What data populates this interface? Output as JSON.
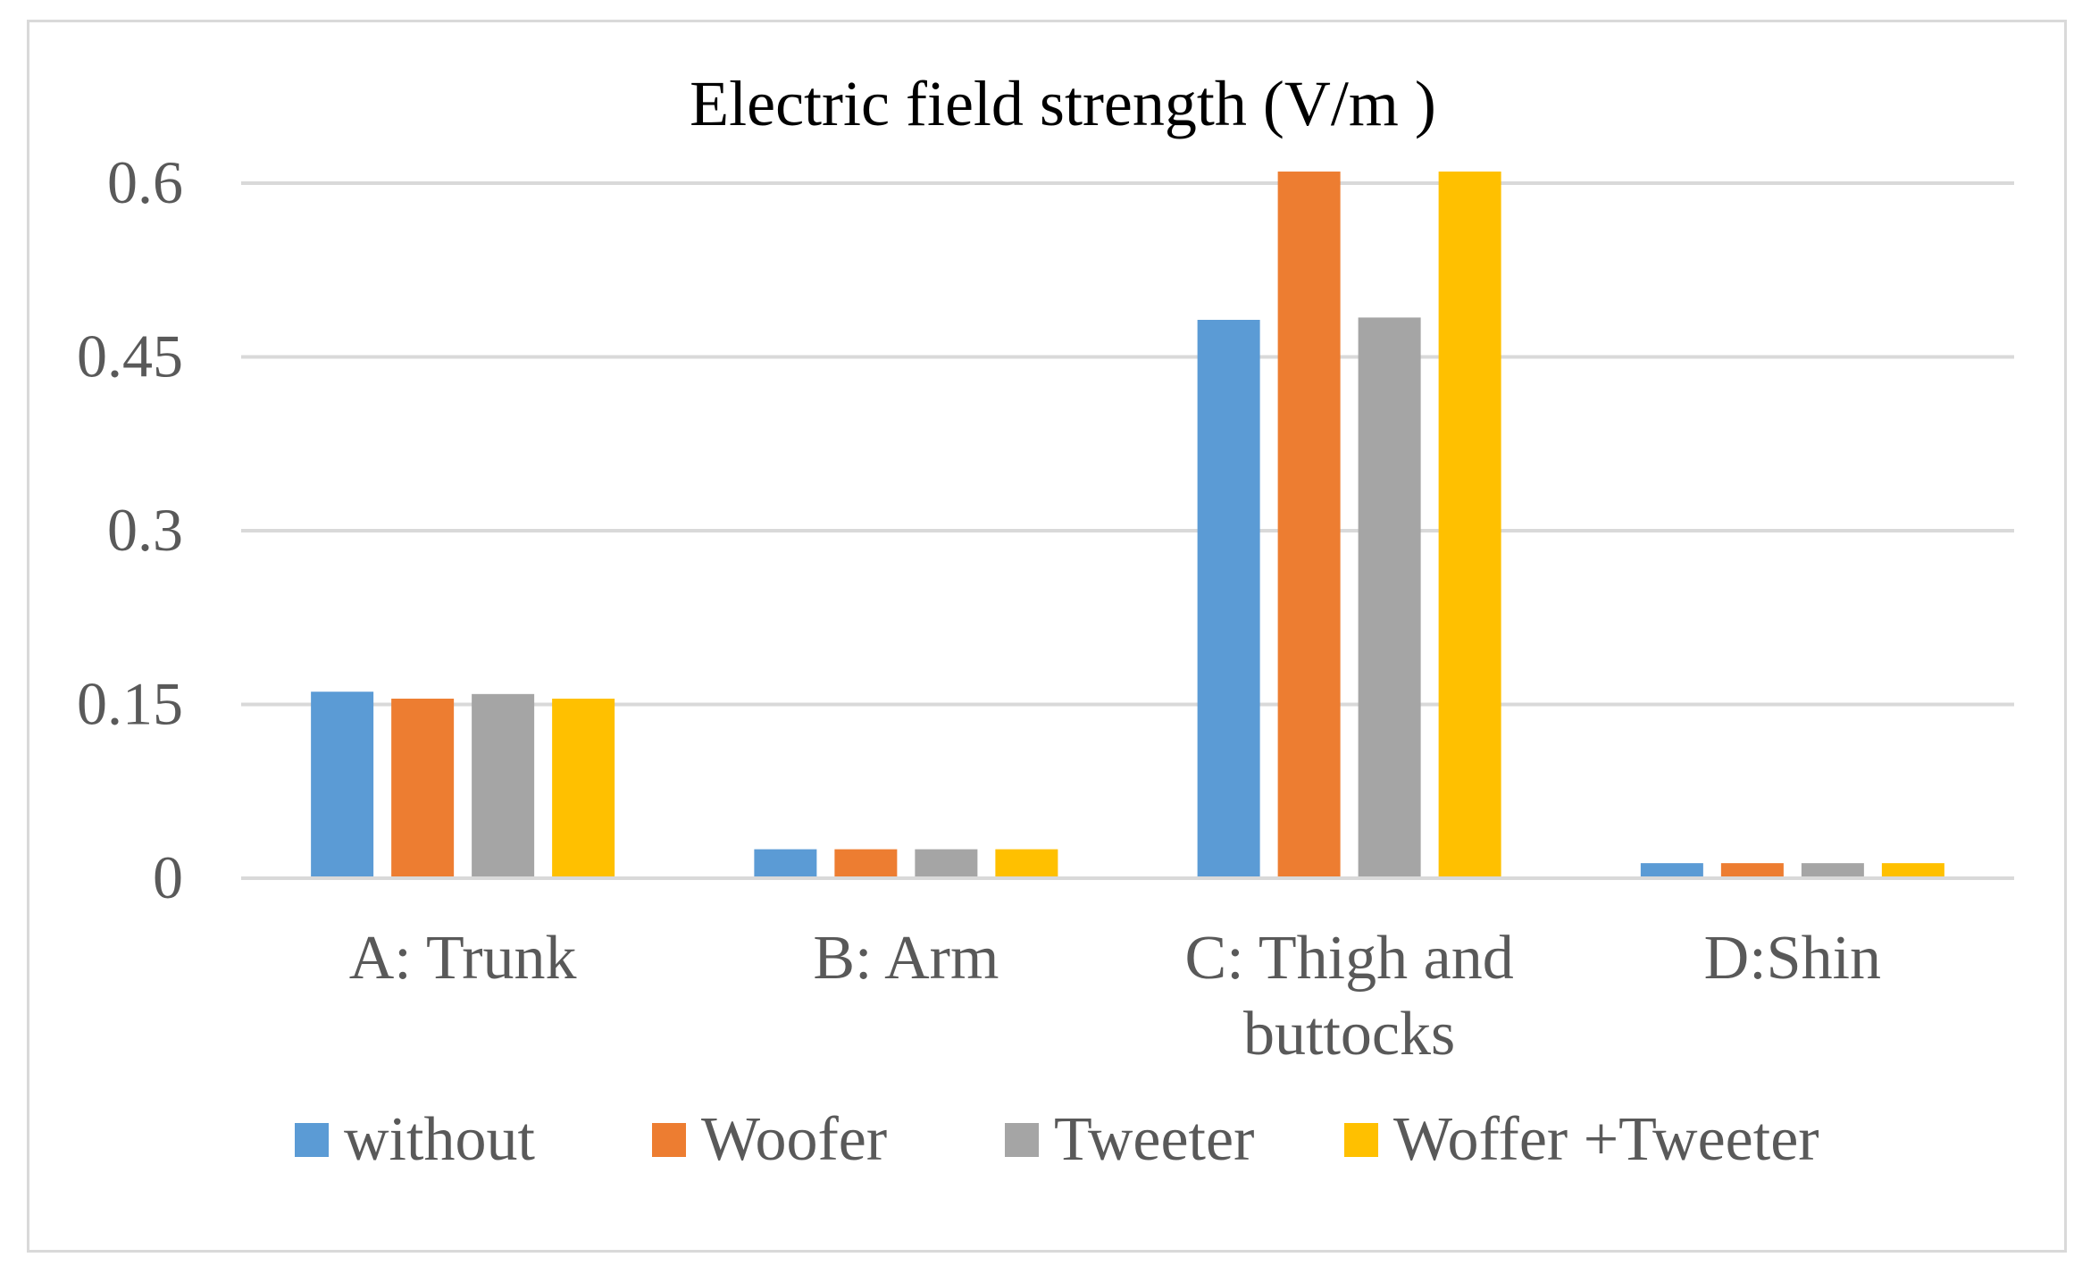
{
  "chart_data": {
    "type": "bar",
    "title": "Electric field strength (V/m )",
    "categories": [
      [
        "A: Trunk"
      ],
      [
        "B: Arm"
      ],
      [
        "C: Thigh and",
        "buttocks"
      ],
      [
        "D:Shin"
      ]
    ],
    "series": [
      {
        "name": "without",
        "color": "#5b9bd5",
        "values": [
          0.161,
          0.025,
          0.482,
          0.013
        ]
      },
      {
        "name": "Woofer",
        "color": "#ed7d31",
        "values": [
          0.155,
          0.025,
          0.61,
          0.013
        ]
      },
      {
        "name": "Tweeter",
        "color": "#a5a5a5",
        "values": [
          0.159,
          0.025,
          0.484,
          0.013
        ]
      },
      {
        "name": "Woffer +Tweeter",
        "color": "#ffc000",
        "values": [
          0.155,
          0.025,
          0.61,
          0.013
        ]
      }
    ],
    "y_ticks": [
      "0",
      "0.15",
      "0.3",
      "0.45",
      "0.6"
    ],
    "ylim": [
      0,
      0.6
    ],
    "xlabel": "",
    "ylabel": "",
    "grid": true,
    "legend_position": "bottom"
  }
}
